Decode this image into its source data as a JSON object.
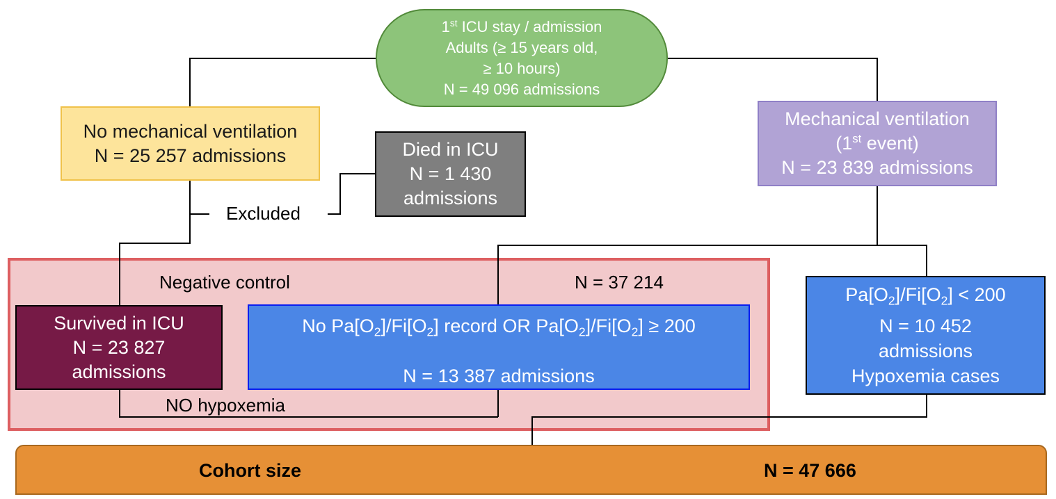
{
  "start": {
    "line1_pre": "1",
    "line1_sup": "st",
    "line1_post": " ICU stay / admission",
    "line2": "Adults (≥ 15 years old,",
    "line3": "≥ 10 hours)",
    "line4": "N = 49 096 admissions"
  },
  "no_mv": {
    "line1": "No mechanical ventilation",
    "line2": "N = 25 257 admissions"
  },
  "died": {
    "line1": "Died in ICU",
    "line2": "N = 1 430",
    "line3": "admissions"
  },
  "excluded_label": "Excluded",
  "mv": {
    "line1": "Mechanical ventilation",
    "line2_pre": "(1",
    "line2_sup": "st",
    "line2_post": " event)",
    "line3": "N = 23 839 admissions"
  },
  "negative_control": {
    "label": "Negative control",
    "count": "N = 37 214"
  },
  "survived": {
    "line1": "Survived in ICU",
    "line2": "N = 23 827",
    "line3": "admissions"
  },
  "no_hypoxemia_label": "NO hypoxemia",
  "no_pao2": {
    "seg1": "No Pa[O",
    "sub1": "2",
    "seg2": "]/Fi[O",
    "sub2": "2",
    "seg3": "] record OR Pa[O",
    "sub3": "2",
    "seg4": "]/Fi[O",
    "sub4": "2",
    "seg5": "] ≥ 200",
    "line2": "N = 13 387 admissions"
  },
  "hypoxemia": {
    "seg1": "Pa[O",
    "sub1": "2",
    "seg2": "]/Fi[O",
    "sub2": "2",
    "seg3": "] < 200",
    "line2": "N = 10 452",
    "line3": "admissions",
    "line4": "Hypoxemia cases"
  },
  "cohort": {
    "label": "Cohort size",
    "count": "N = 47 666"
  }
}
